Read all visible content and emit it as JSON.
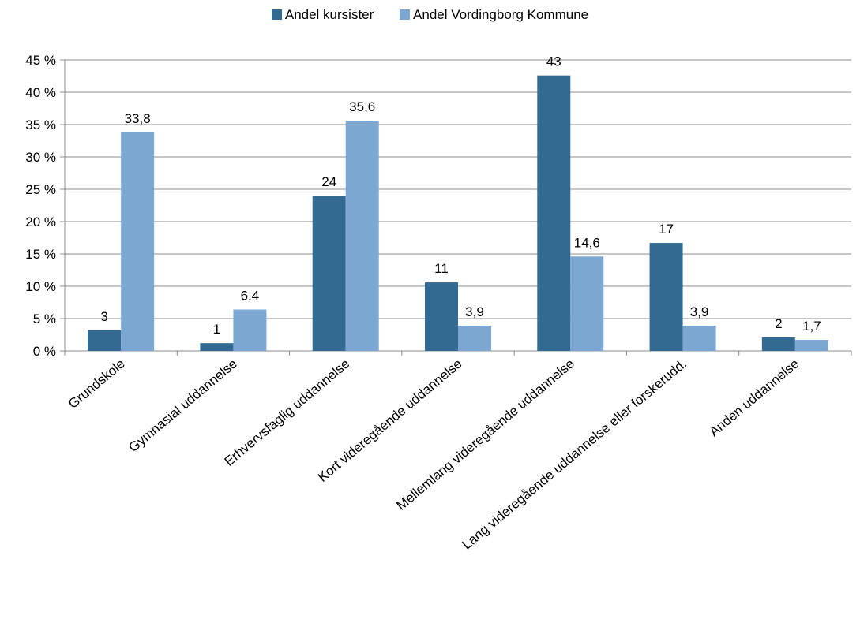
{
  "chart_data": {
    "type": "bar",
    "categories": [
      "Grundskole",
      "Gymnasial uddannelse",
      "Erhvervsfaglig uddannelse",
      "Kort videregående uddannelse",
      "Mellemlang videregående uddannelse",
      "Lang videregående uddannelse eller forskerudd.",
      "Anden uddannelse"
    ],
    "series": [
      {
        "name": "Andel kursister",
        "color": "#336a91",
        "values": [
          3.2,
          1.2,
          24.0,
          10.6,
          42.6,
          16.7,
          2.1
        ],
        "labels": [
          "3",
          "1",
          "24",
          "11",
          "43",
          "17",
          "2"
        ]
      },
      {
        "name": "Andel Vordingborg Kommune",
        "color": "#7ba7d1",
        "values": [
          33.8,
          6.4,
          35.6,
          3.9,
          14.6,
          3.9,
          1.7
        ],
        "labels": [
          "33,8",
          "6,4",
          "35,6",
          "3,9",
          "14,6",
          "3,9",
          "1,7"
        ]
      }
    ],
    "yticks": [
      "0 %",
      "5 %",
      "10 %",
      "15 %",
      "20 %",
      "25 %",
      "30 %",
      "35 %",
      "40 %",
      "45 %"
    ],
    "ylim": [
      0,
      45
    ],
    "grid": true,
    "legend": "top-center",
    "title": "",
    "xlabel": "",
    "ylabel": ""
  }
}
